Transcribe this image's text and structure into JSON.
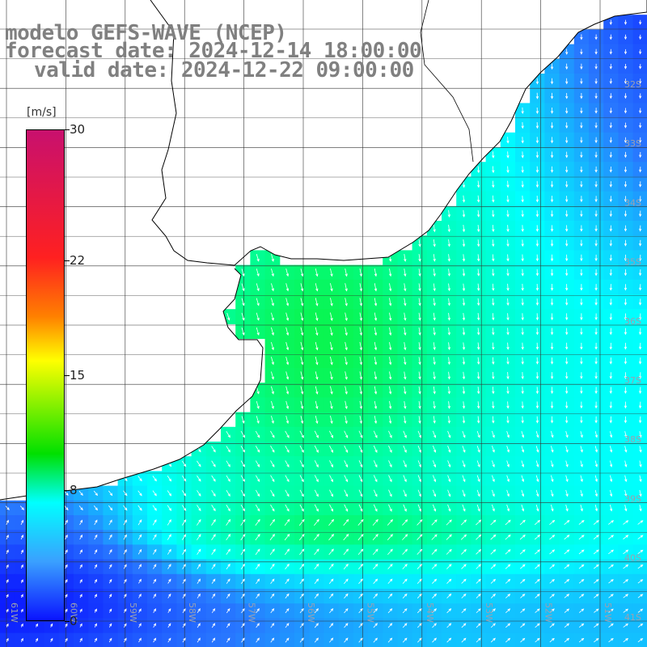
{
  "title": {
    "line1": "modelo GEFS-WAVE (NCEP)",
    "line2": "forecast date: 2024-12-14 18:00:00",
    "line3": "valid date: 2024-12-22 09:00:00"
  },
  "colorbar": {
    "unit": "[m/s]",
    "ticks": [
      {
        "label": "30",
        "value": 30
      },
      {
        "label": "22",
        "value": 22
      },
      {
        "label": "15",
        "value": 15
      },
      {
        "label": "8",
        "value": 8
      },
      {
        "label": "0",
        "value": 0
      }
    ],
    "colors": [
      "#0a14ff",
      "#3aa0ff",
      "#00ffff",
      "#00e000",
      "#ffff00",
      "#ff8000",
      "#ff2020",
      "#c8106e"
    ]
  },
  "map": {
    "lat_labels": [
      "32S",
      "33S",
      "34S",
      "35S",
      "36S",
      "37S",
      "38S",
      "39S",
      "40S",
      "41S"
    ],
    "lon_labels": [
      "61W",
      "60W",
      "59W",
      "58W",
      "57W",
      "56W",
      "55W",
      "54W",
      "53W",
      "52W",
      "51W"
    ],
    "colors": {
      "land": "#ffffff",
      "coast": "#000000",
      "grid": "#333333",
      "arrow": "#ffffff",
      "latlabel": "#9aa0b0"
    }
  }
}
